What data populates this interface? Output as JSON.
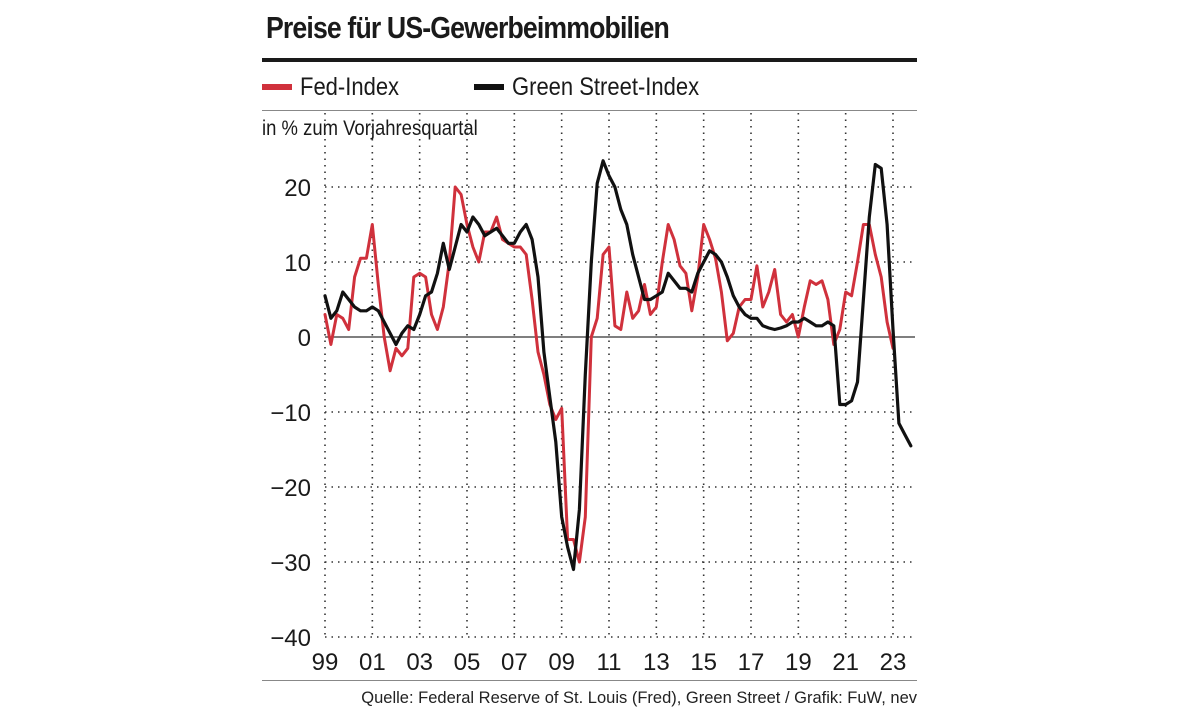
{
  "chart_data": {
    "type": "line",
    "title": "Preise für US-Gewerbeimmobilien",
    "ylabel": "in % zum Vorjahresquartal",
    "source": "Quelle: Federal Reserve of St. Louis (Fred), Green Street / Grafik: FuW, nev",
    "ylim": [
      -40,
      25
    ],
    "xlim": [
      1999,
      2023.75
    ],
    "yticks": [
      20,
      10,
      0,
      -10,
      -20,
      -30,
      -40
    ],
    "ytick_labels": [
      "20",
      "10",
      "0",
      "−10",
      "−20",
      "−30",
      "−40"
    ],
    "xticks": [
      1999,
      2001,
      2003,
      2005,
      2007,
      2009,
      2011,
      2013,
      2015,
      2017,
      2019,
      2021,
      2023
    ],
    "xtick_labels": [
      "99",
      "01",
      "03",
      "05",
      "07",
      "09",
      "11",
      "13",
      "15",
      "17",
      "19",
      "21",
      "23"
    ],
    "grid": true,
    "legend_position": "top",
    "series": [
      {
        "name": "Fed-Index",
        "color": "#d0313c",
        "points": [
          [
            1999.0,
            3
          ],
          [
            1999.25,
            -1
          ],
          [
            1999.5,
            3
          ],
          [
            1999.75,
            2.5
          ],
          [
            2000.0,
            1
          ],
          [
            2000.25,
            8
          ],
          [
            2000.5,
            10.5
          ],
          [
            2000.75,
            10.5
          ],
          [
            2001.0,
            15
          ],
          [
            2001.25,
            7
          ],
          [
            2001.5,
            0
          ],
          [
            2001.75,
            -4.5
          ],
          [
            2002.0,
            -1.5
          ],
          [
            2002.25,
            -2.5
          ],
          [
            2002.5,
            -1.5
          ],
          [
            2002.75,
            8
          ],
          [
            2003.0,
            8.5
          ],
          [
            2003.25,
            8
          ],
          [
            2003.5,
            3
          ],
          [
            2003.75,
            1
          ],
          [
            2004.0,
            4
          ],
          [
            2004.25,
            10
          ],
          [
            2004.5,
            20
          ],
          [
            2004.75,
            19
          ],
          [
            2005.0,
            15
          ],
          [
            2005.25,
            12
          ],
          [
            2005.5,
            10
          ],
          [
            2005.75,
            14
          ],
          [
            2006.0,
            14
          ],
          [
            2006.25,
            16
          ],
          [
            2006.5,
            13
          ],
          [
            2006.75,
            12.5
          ],
          [
            2007.0,
            12
          ],
          [
            2007.25,
            12
          ],
          [
            2007.5,
            11
          ],
          [
            2007.75,
            5
          ],
          [
            2008.0,
            -2
          ],
          [
            2008.25,
            -5
          ],
          [
            2008.5,
            -9
          ],
          [
            2008.75,
            -11
          ],
          [
            2009.0,
            -9.5
          ],
          [
            2009.25,
            -27
          ],
          [
            2009.5,
            -27
          ],
          [
            2009.75,
            -30
          ],
          [
            2010.0,
            -24
          ],
          [
            2010.25,
            0
          ],
          [
            2010.5,
            2.5
          ],
          [
            2010.75,
            11
          ],
          [
            2011.0,
            12
          ],
          [
            2011.25,
            1.5
          ],
          [
            2011.5,
            1
          ],
          [
            2011.75,
            6
          ],
          [
            2012.0,
            2.5
          ],
          [
            2012.25,
            3.5
          ],
          [
            2012.5,
            7
          ],
          [
            2012.75,
            3
          ],
          [
            2013.0,
            4
          ],
          [
            2013.25,
            10
          ],
          [
            2013.5,
            15
          ],
          [
            2013.75,
            13
          ],
          [
            2014.0,
            9.5
          ],
          [
            2014.25,
            8.5
          ],
          [
            2014.5,
            3.5
          ],
          [
            2014.75,
            8
          ],
          [
            2015.0,
            15
          ],
          [
            2015.25,
            13
          ],
          [
            2015.5,
            10.5
          ],
          [
            2015.75,
            6
          ],
          [
            2016.0,
            -0.5
          ],
          [
            2016.25,
            0.5
          ],
          [
            2016.5,
            4
          ],
          [
            2016.75,
            5
          ],
          [
            2017.0,
            5
          ],
          [
            2017.25,
            9.5
          ],
          [
            2017.5,
            4
          ],
          [
            2017.75,
            6
          ],
          [
            2018.0,
            9
          ],
          [
            2018.25,
            3
          ],
          [
            2018.5,
            2
          ],
          [
            2018.75,
            3
          ],
          [
            2019.0,
            0
          ],
          [
            2019.25,
            4
          ],
          [
            2019.5,
            7.5
          ],
          [
            2019.75,
            7
          ],
          [
            2020.0,
            7.5
          ],
          [
            2020.25,
            5
          ],
          [
            2020.5,
            -1
          ],
          [
            2020.75,
            1
          ],
          [
            2021.0,
            6
          ],
          [
            2021.25,
            5.5
          ],
          [
            2021.5,
            10
          ],
          [
            2021.75,
            15
          ],
          [
            2022.0,
            15
          ],
          [
            2022.25,
            11
          ],
          [
            2022.5,
            8
          ],
          [
            2022.75,
            2
          ],
          [
            2023.0,
            -1.5
          ]
        ]
      },
      {
        "name": "Green Street-Index",
        "color": "#111111",
        "points": [
          [
            1999.0,
            5.5
          ],
          [
            1999.25,
            2.5
          ],
          [
            1999.5,
            3.5
          ],
          [
            1999.75,
            6
          ],
          [
            2000.0,
            5
          ],
          [
            2000.25,
            4
          ],
          [
            2000.5,
            3.5
          ],
          [
            2000.75,
            3.5
          ],
          [
            2001.0,
            4
          ],
          [
            2001.25,
            3.5
          ],
          [
            2001.5,
            2
          ],
          [
            2001.75,
            0.5
          ],
          [
            2002.0,
            -1
          ],
          [
            2002.25,
            0.5
          ],
          [
            2002.5,
            1.5
          ],
          [
            2002.75,
            1
          ],
          [
            2003.0,
            3
          ],
          [
            2003.25,
            5.5
          ],
          [
            2003.5,
            6
          ],
          [
            2003.75,
            8.5
          ],
          [
            2004.0,
            12.5
          ],
          [
            2004.25,
            9
          ],
          [
            2004.5,
            12
          ],
          [
            2004.75,
            15
          ],
          [
            2005.0,
            14
          ],
          [
            2005.25,
            16
          ],
          [
            2005.5,
            15
          ],
          [
            2005.75,
            13.5
          ],
          [
            2006.0,
            14
          ],
          [
            2006.25,
            14.5
          ],
          [
            2006.5,
            13.5
          ],
          [
            2006.75,
            12.5
          ],
          [
            2007.0,
            12.5
          ],
          [
            2007.25,
            14
          ],
          [
            2007.5,
            15
          ],
          [
            2007.75,
            13
          ],
          [
            2008.0,
            8
          ],
          [
            2008.25,
            -2
          ],
          [
            2008.5,
            -8
          ],
          [
            2008.75,
            -14
          ],
          [
            2009.0,
            -24
          ],
          [
            2009.25,
            -28
          ],
          [
            2009.5,
            -31
          ],
          [
            2009.75,
            -23
          ],
          [
            2010.0,
            -5
          ],
          [
            2010.25,
            10
          ],
          [
            2010.5,
            20.5
          ],
          [
            2010.75,
            23.5
          ],
          [
            2011.0,
            21.5
          ],
          [
            2011.25,
            20
          ],
          [
            2011.5,
            17
          ],
          [
            2011.75,
            15
          ],
          [
            2012.0,
            11
          ],
          [
            2012.25,
            8
          ],
          [
            2012.5,
            5
          ],
          [
            2012.75,
            5
          ],
          [
            2013.0,
            5.5
          ],
          [
            2013.25,
            6
          ],
          [
            2013.5,
            8.5
          ],
          [
            2013.75,
            7.5
          ],
          [
            2014.0,
            6.5
          ],
          [
            2014.25,
            6.5
          ],
          [
            2014.5,
            6
          ],
          [
            2014.75,
            8.5
          ],
          [
            2015.0,
            10
          ],
          [
            2015.25,
            11.5
          ],
          [
            2015.5,
            11
          ],
          [
            2015.75,
            10
          ],
          [
            2016.0,
            8
          ],
          [
            2016.25,
            5.5
          ],
          [
            2016.5,
            4
          ],
          [
            2016.75,
            3
          ],
          [
            2017.0,
            2.5
          ],
          [
            2017.25,
            2.5
          ],
          [
            2017.5,
            1.5
          ],
          [
            2017.75,
            1.2
          ],
          [
            2018.0,
            1
          ],
          [
            2018.25,
            1.2
          ],
          [
            2018.5,
            1.5
          ],
          [
            2018.75,
            2
          ],
          [
            2019.0,
            2
          ],
          [
            2019.25,
            2.5
          ],
          [
            2019.5,
            2
          ],
          [
            2019.75,
            1.5
          ],
          [
            2020.0,
            1.5
          ],
          [
            2020.25,
            2
          ],
          [
            2020.5,
            1.5
          ],
          [
            2020.75,
            -9
          ],
          [
            2021.0,
            -9
          ],
          [
            2021.25,
            -8.5
          ],
          [
            2021.5,
            -6
          ],
          [
            2021.75,
            5
          ],
          [
            2022.0,
            16
          ],
          [
            2022.25,
            23
          ],
          [
            2022.5,
            22.5
          ],
          [
            2022.75,
            15
          ],
          [
            2023.0,
            1
          ],
          [
            2023.25,
            -11.5
          ],
          [
            2023.5,
            -13
          ],
          [
            2023.75,
            -14.5
          ]
        ]
      }
    ]
  }
}
